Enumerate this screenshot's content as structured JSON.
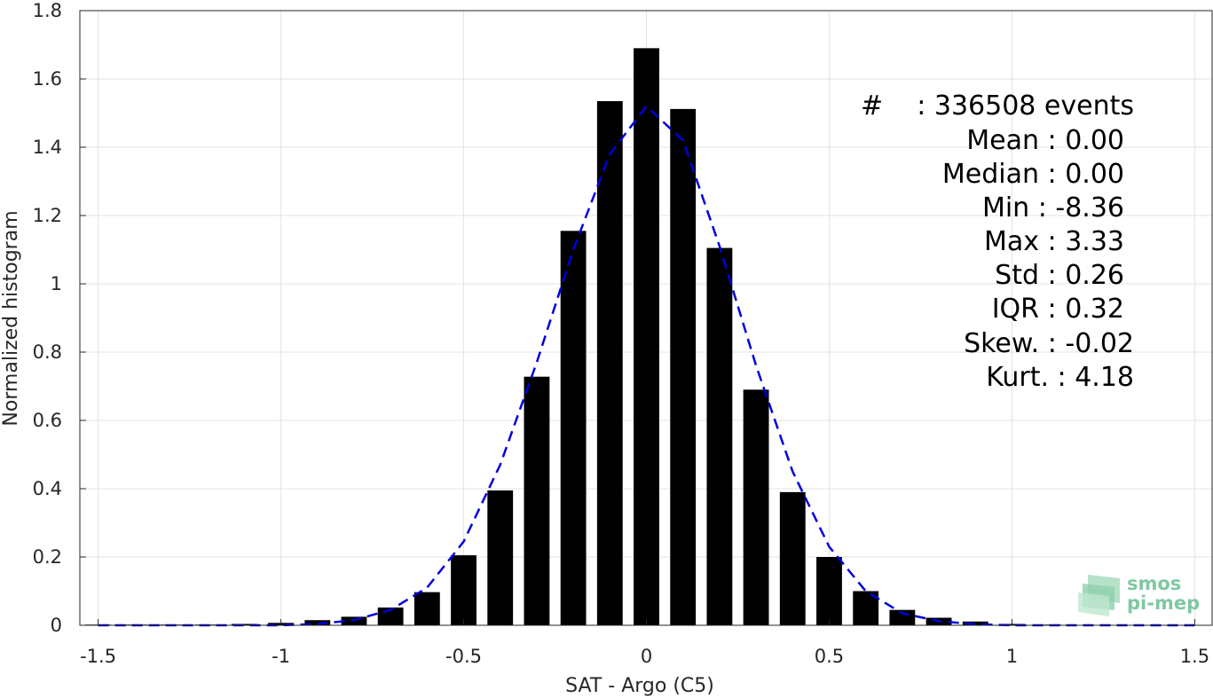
{
  "chart_data": {
    "type": "bar",
    "xlabel": "SAT - Argo (C5)",
    "ylabel": "Normalized histogram",
    "xlim": [
      -1.55,
      1.55
    ],
    "ylim": [
      0,
      1.8
    ],
    "xticks": [
      -1.5,
      -1,
      -0.5,
      0,
      0.5,
      1,
      1.5
    ],
    "xtick_labels": [
      "-1.5",
      "-1",
      "-0.5",
      "0",
      "0.5",
      "1",
      "1.5"
    ],
    "yticks": [
      0,
      0.2,
      0.4,
      0.6,
      0.8,
      1,
      1.2,
      1.4,
      1.6,
      1.8
    ],
    "ytick_labels": [
      "0",
      "0.2",
      "0.4",
      "0.6",
      "0.8",
      "1",
      "1.2",
      "1.4",
      "1.6",
      "1.8"
    ],
    "grid": true,
    "bar_width": 0.07,
    "bar_color": "#000000",
    "bars": {
      "x": [
        -1.5,
        -1.4,
        -1.3,
        -1.2,
        -1.1,
        -1.0,
        -0.9,
        -0.8,
        -0.7,
        -0.6,
        -0.5,
        -0.4,
        -0.3,
        -0.2,
        -0.1,
        0.0,
        0.1,
        0.2,
        0.3,
        0.4,
        0.5,
        0.6,
        0.7,
        0.8,
        0.9,
        1.0,
        1.1,
        1.2,
        1.3,
        1.4,
        1.5
      ],
      "values": [
        0.002,
        0.002,
        0.002,
        0.002,
        0.004,
        0.007,
        0.015,
        0.025,
        0.052,
        0.097,
        0.205,
        0.395,
        0.728,
        1.155,
        1.535,
        1.69,
        1.512,
        1.105,
        0.69,
        0.39,
        0.2,
        0.1,
        0.045,
        0.022,
        0.011,
        0.004,
        0.002,
        0.001,
        0.001,
        0.001,
        0.001
      ]
    },
    "fit_curve": {
      "style": "dashed",
      "color": "#0000dd",
      "x": [
        -1.5,
        -1.4,
        -1.3,
        -1.2,
        -1.1,
        -1.0,
        -0.9,
        -0.8,
        -0.7,
        -0.6,
        -0.5,
        -0.4,
        -0.3,
        -0.2,
        -0.1,
        0.0,
        0.1,
        0.2,
        0.3,
        0.4,
        0.5,
        0.6,
        0.7,
        0.8,
        0.9,
        1.0,
        1.1,
        1.2,
        1.3,
        1.4,
        1.5
      ],
      "y": [
        0.0,
        0.0,
        0.0,
        0.0,
        0.0,
        0.0,
        0.004,
        0.015,
        0.045,
        0.11,
        0.245,
        0.47,
        0.77,
        1.1,
        1.38,
        1.52,
        1.42,
        1.11,
        0.76,
        0.45,
        0.23,
        0.1,
        0.035,
        0.012,
        0.003,
        0.0,
        0.0,
        0.0,
        0.0,
        0.0,
        0.0
      ]
    }
  },
  "stats": {
    "events_hash": "#",
    "events_sep": ": 336508 events",
    "mean": "Mean : 0.00",
    "median": "Median : 0.00",
    "min": "Min : -8.36",
    "max": "Max : 3.33",
    "std": "Std : 0.26",
    "iqr": "IQR : 0.32",
    "skew": "Skew. : -0.02",
    "kurt": "Kurt. : 4.18"
  },
  "logo": {
    "line1": "smos",
    "line2": "pi-mep",
    "color": "#7fc8a0"
  }
}
